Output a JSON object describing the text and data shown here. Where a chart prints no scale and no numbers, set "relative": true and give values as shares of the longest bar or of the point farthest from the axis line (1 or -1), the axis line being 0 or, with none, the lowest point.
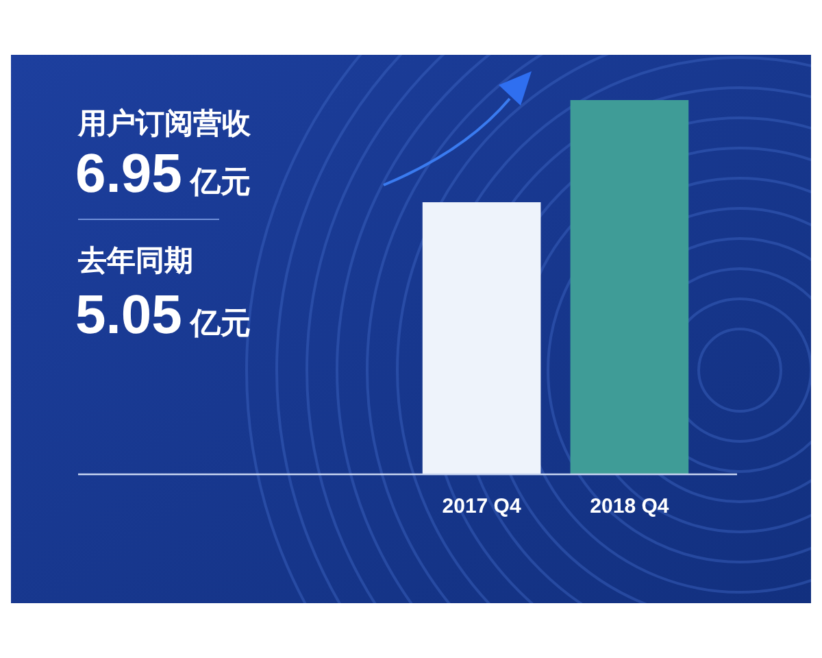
{
  "chart_data": {
    "type": "bar",
    "relative": true,
    "categories": [
      "2017 Q4",
      "2018 Q4"
    ],
    "values": [
      0.727,
      1
    ],
    "colors": [
      "#eef3fb",
      "#3f9c97"
    ],
    "annotations": [
      "用户订阅营收",
      "6.95亿元",
      "去年同期",
      "5.05亿元"
    ]
  }
}
